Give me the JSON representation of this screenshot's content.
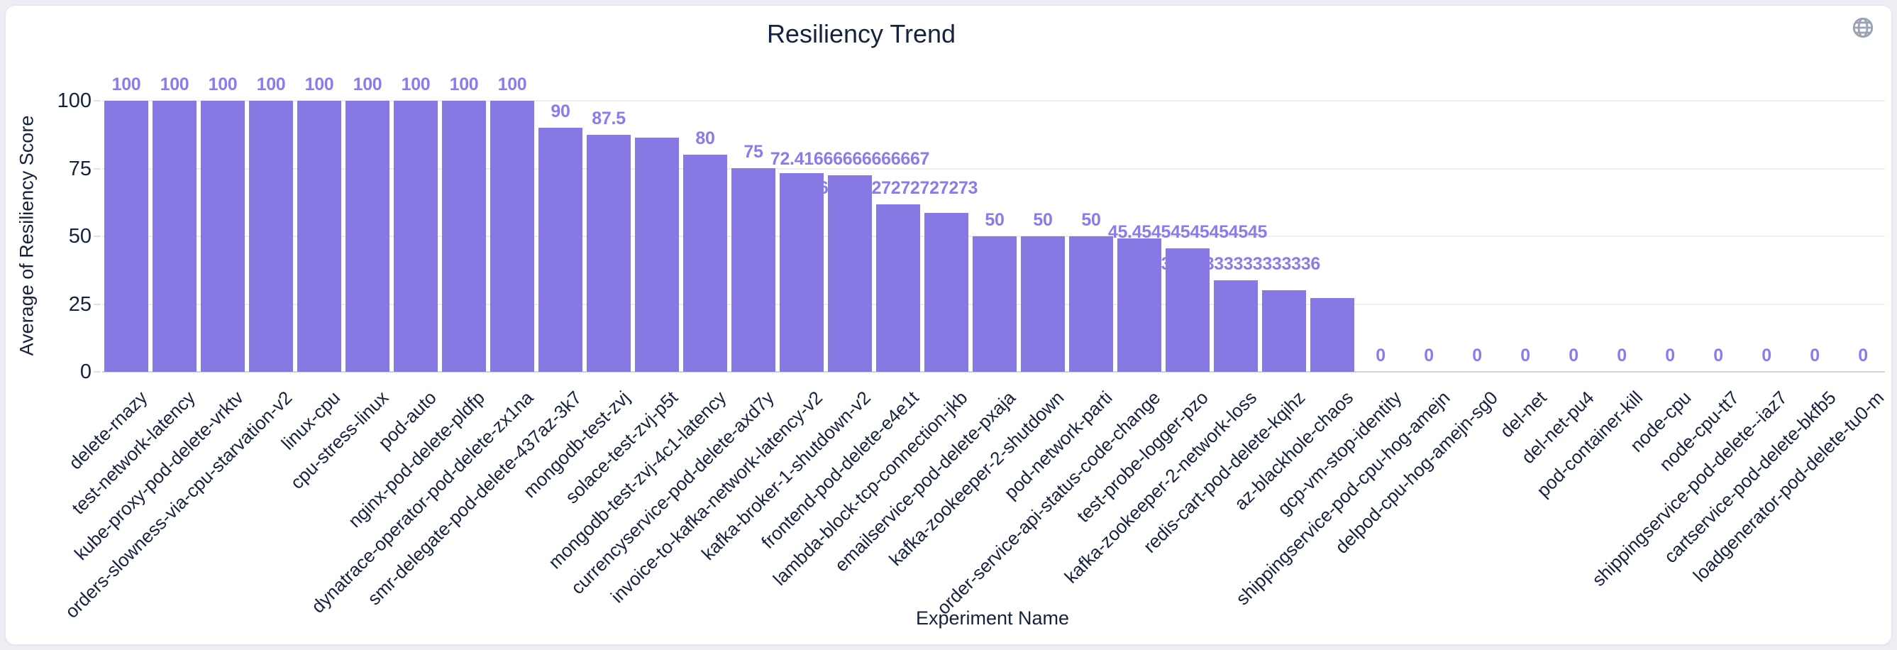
{
  "page": {
    "background_color": "#eceef3",
    "card_background": "#ffffff"
  },
  "icons": {
    "top_right": "globe-icon",
    "top_right_color": "#9aa3b2"
  },
  "chart_data": {
    "type": "bar",
    "title": "Resiliency Trend",
    "xlabel": "Experiment Name",
    "ylabel": "Average of Resiliency Score",
    "ylim": [
      0,
      100
    ],
    "yticks": [
      0,
      25,
      50,
      75,
      100
    ],
    "grid": true,
    "legend": "none",
    "bar_color": "#8679e3",
    "value_label_color": "#8a7cec",
    "text_color": "#16233f",
    "grid_color": "#efefef",
    "axis_line_color": "#ccd5e6",
    "categories": [
      "delete-rnazy",
      "test-network-latency",
      "kube-proxy-pod-delete-vrktv",
      "orders-slowness-via-cpu-starvation-v2",
      "linux-cpu",
      "cpu-stress-linux",
      "pod-auto",
      "nginx-pod-delete-pldfp",
      "dynatrace-operator-pod-delete-zx1na",
      "smr-delegate-pod-delete-437az-3k7",
      "mongodb-test-zvj",
      "solace-test-zvj-p5t",
      "mongodb-test-zvj-4c1-latency",
      "currencyservice-pod-delete-axd7y",
      "invoice-to-kafka-network-latency-v2",
      "kafka-broker-1-shutdown-v2",
      "frontend-pod-delete-e4e1t",
      "lambda-block-tcp-connection-jkb",
      "emailservice-pod-delete-pxaja",
      "kafka-zookeeper-2-shutdown",
      "pod-network-parti",
      "order-service-api-status-code-change",
      "test-probe-logger-pzo",
      "kafka-zookeeper-2-network-loss",
      "redis-cart-pod-delete-kqihz",
      "az-blackhole-chaos",
      "gcp-vm-stop-identity",
      "shippingservice-pod-cpu-hog-amejn",
      "delpod-cpu-hog-amejn-sg0",
      "del-net",
      "del-net-pu4",
      "pod-container-kill",
      "node-cpu",
      "node-cpu-tt7",
      "shippingservice-pod-delete--iaz7",
      "cartservice-pod-delete-bkfb5",
      "loadgenerator-pod-delete-tu0-m"
    ],
    "values": [
      100,
      100,
      100,
      100,
      100,
      100,
      100,
      100,
      100,
      90,
      87.5,
      86.36363636363636,
      80,
      75,
      73.33333333333333,
      72.41666666666667,
      61.72727272727273,
      58.63636363636363,
      50,
      50,
      50,
      49.09090909090909,
      45.45454545454545,
      33.833333333333336,
      30,
      27.27272727272727,
      0,
      0,
      0,
      0,
      0,
      0,
      0,
      0,
      0,
      0,
      0
    ],
    "data_labels": [
      "100",
      "100",
      "100",
      "100",
      "100",
      "100",
      "100",
      "100",
      "100",
      "90",
      "87.5",
      null,
      "80",
      "75",
      null,
      "72.41666666666667",
      "61.72727272727273",
      null,
      "50",
      "50",
      "50",
      null,
      "45.45454545454545",
      "33.833333333333336",
      null,
      null,
      "0",
      "0",
      "0",
      "0",
      "0",
      "0",
      "0",
      "0",
      "0",
      "0",
      "0"
    ]
  }
}
